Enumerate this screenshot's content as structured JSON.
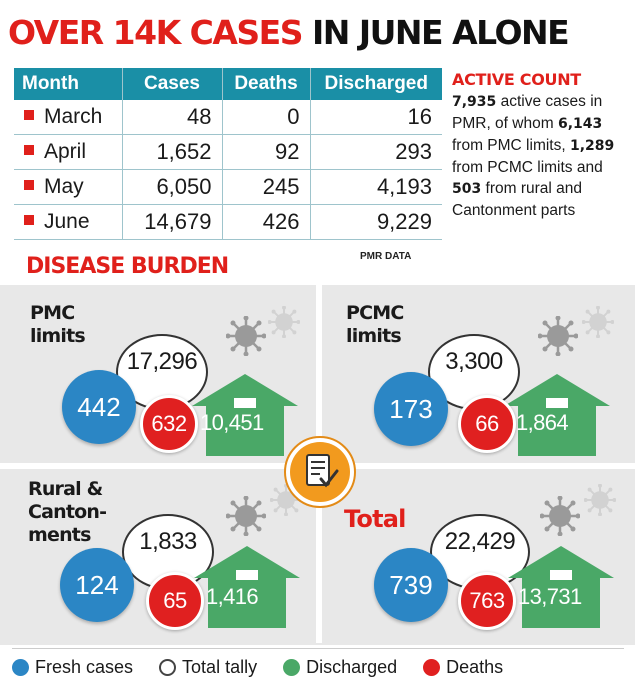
{
  "headline": {
    "red": "OVER 14K CASES",
    "black": "IN JUNE ALONE"
  },
  "table": {
    "headers": [
      "Month",
      "Cases",
      "Deaths",
      "Discharged"
    ],
    "rows": [
      {
        "month": "March",
        "cases": "48",
        "deaths": "0",
        "discharged": "16"
      },
      {
        "month": "April",
        "cases": "1,652",
        "deaths": "92",
        "discharged": "293"
      },
      {
        "month": "May",
        "cases": "6,050",
        "deaths": "245",
        "discharged": "4,193"
      },
      {
        "month": "June",
        "cases": "14,679",
        "deaths": "426",
        "discharged": "9,229"
      }
    ]
  },
  "active_count": {
    "title": "ACTIVE COUNT",
    "total": "7,935",
    "t1": " active cases in PMR, of whom ",
    "pmc": "6,143",
    "t2": " from PMC limits, ",
    "pcmc": "1,289",
    "t3": " from PCMC limits and ",
    "rural": "503",
    "t4": " from rural and Cantonment parts"
  },
  "burden_title": "DISEASE BURDEN",
  "source": "PMR DATA",
  "panels": {
    "pmc": {
      "label": "PMC\nlimits",
      "tally": "17,296",
      "fresh": "442",
      "deaths": "632",
      "discharged": "10,451"
    },
    "pcmc": {
      "label": "PCMC\nlimits",
      "tally": "3,300",
      "fresh": "173",
      "deaths": "66",
      "discharged": "1,864"
    },
    "rural": {
      "label": "Rural &\nCanton-\nments",
      "tally": "1,833",
      "fresh": "124",
      "deaths": "65",
      "discharged": "1,416"
    },
    "total": {
      "label": "Total",
      "tally": "22,429",
      "fresh": "739",
      "deaths": "763",
      "discharged": "13,731"
    }
  },
  "legend": {
    "fresh": "Fresh cases",
    "tally": "Total tally",
    "discharged": "Discharged",
    "deaths": "Deaths"
  },
  "colors": {
    "headline_red": "#e0201b",
    "table_header": "#1a8fa6",
    "fresh": "#2b86c5",
    "discharged": "#4aa867",
    "deaths": "#e02020",
    "panel_bg": "#e8e8e8",
    "badge": "#f29a1e"
  },
  "icons": {
    "badge": "checklist-icon",
    "virus": "virus-icon",
    "house": "house-icon"
  }
}
